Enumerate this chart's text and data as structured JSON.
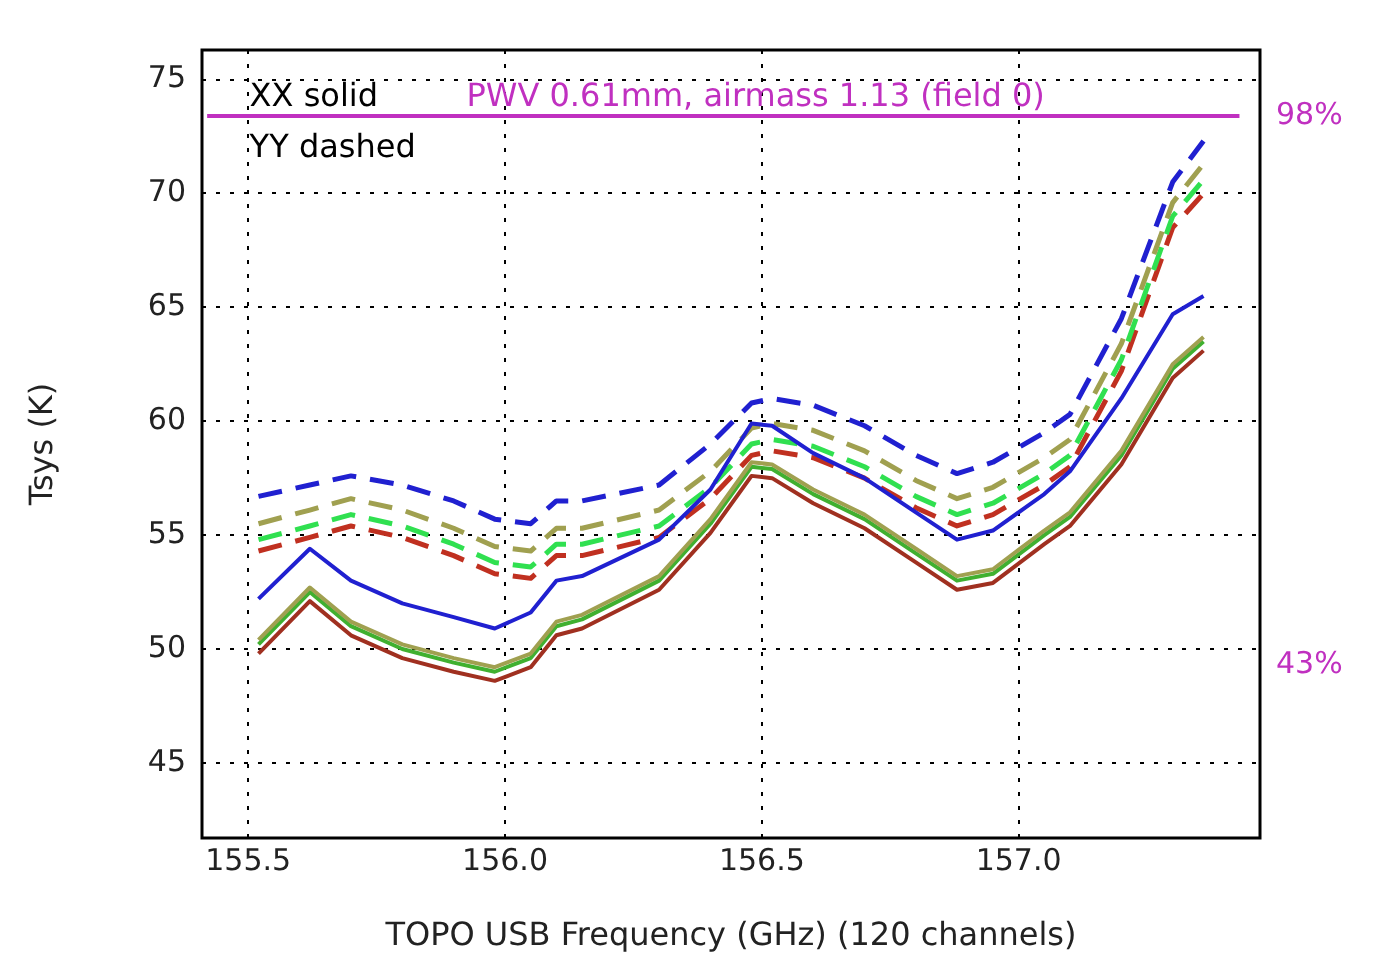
{
  "chart_data": {
    "type": "line",
    "xlabel": "TOPO USB Frequency (GHz) (120 channels)",
    "ylabel": "Tsys (K)",
    "xlim": [
      155.41,
      157.47
    ],
    "xticks": [
      {
        "value": 155.5,
        "label": "155.5"
      },
      {
        "value": 156.0,
        "label": "156.0"
      },
      {
        "value": 156.5,
        "label": "156.5"
      },
      {
        "value": 157.0,
        "label": "157.0"
      }
    ],
    "ylim": [
      41.7,
      76.3
    ],
    "yticks": [
      45,
      50,
      55,
      60,
      65,
      70,
      75
    ],
    "y2lim": [
      25.7,
      104.6
    ],
    "y2ticks": [
      {
        "value": 43,
        "label": "43%"
      },
      {
        "value": 98,
        "label": "98%"
      }
    ],
    "grid": true,
    "legend": false,
    "x": [
      155.52,
      155.62,
      155.7,
      155.8,
      155.9,
      155.98,
      156.05,
      156.1,
      156.15,
      156.3,
      156.4,
      156.48,
      156.52,
      156.6,
      156.7,
      156.8,
      156.88,
      156.95,
      157.05,
      157.1,
      157.2,
      157.3,
      157.36
    ],
    "series": [
      {
        "color": "#2020d0",
        "line_style": "solid",
        "values": [
          52.2,
          54.4,
          53.0,
          52.0,
          51.4,
          50.9,
          51.6,
          53.0,
          53.2,
          54.8,
          57.0,
          59.9,
          59.8,
          58.6,
          57.5,
          56.0,
          54.8,
          55.2,
          56.8,
          57.8,
          61.0,
          64.7,
          65.5
        ]
      },
      {
        "color": "#a03020",
        "line_style": "solid",
        "values": [
          49.8,
          52.1,
          50.6,
          49.6,
          49.0,
          48.6,
          49.2,
          50.6,
          50.9,
          52.6,
          55.1,
          57.6,
          57.5,
          56.4,
          55.3,
          53.8,
          52.6,
          52.9,
          54.6,
          55.4,
          58.1,
          61.9,
          63.1
        ]
      },
      {
        "color": "#a0a050",
        "line_style": "solid",
        "values": [
          50.4,
          52.7,
          51.2,
          50.2,
          49.6,
          49.2,
          49.8,
          51.2,
          51.5,
          53.2,
          55.7,
          58.2,
          58.1,
          57.0,
          55.9,
          54.4,
          53.2,
          53.5,
          55.2,
          56.0,
          58.7,
          62.5,
          63.7
        ]
      },
      {
        "color": "#40b030",
        "line_style": "solid",
        "values": [
          50.2,
          52.5,
          51.0,
          50.0,
          49.4,
          49.0,
          49.6,
          51.0,
          51.3,
          53.0,
          55.5,
          58.0,
          57.9,
          56.8,
          55.7,
          54.2,
          53.0,
          53.3,
          55.0,
          55.8,
          58.5,
          62.3,
          63.5
        ]
      },
      {
        "color": "#2020d0",
        "line_style": "dashed",
        "values": [
          56.7,
          57.2,
          57.6,
          57.2,
          56.5,
          55.7,
          55.5,
          56.5,
          56.5,
          57.2,
          59.0,
          60.8,
          61.0,
          60.7,
          59.8,
          58.5,
          57.7,
          58.2,
          59.5,
          60.3,
          64.5,
          70.5,
          72.3
        ]
      },
      {
        "color": "#a0a050",
        "line_style": "dashed",
        "values": [
          55.5,
          56.1,
          56.6,
          56.1,
          55.3,
          54.5,
          54.3,
          55.3,
          55.3,
          56.1,
          57.8,
          59.7,
          59.9,
          59.6,
          58.7,
          57.4,
          56.6,
          57.1,
          58.4,
          59.2,
          63.4,
          69.6,
          71.3
        ]
      },
      {
        "color": "#30e050",
        "line_style": "dashed",
        "values": [
          54.8,
          55.4,
          55.9,
          55.4,
          54.6,
          53.8,
          53.6,
          54.6,
          54.6,
          55.4,
          57.1,
          59.0,
          59.2,
          58.9,
          58.0,
          56.7,
          55.9,
          56.4,
          57.7,
          58.5,
          62.7,
          69.0,
          70.6
        ]
      },
      {
        "color": "#c03020",
        "line_style": "dashed",
        "values": [
          54.3,
          54.9,
          55.4,
          54.9,
          54.1,
          53.3,
          53.1,
          54.1,
          54.1,
          54.9,
          56.6,
          58.5,
          58.7,
          58.4,
          57.5,
          56.2,
          55.4,
          55.9,
          57.2,
          58.0,
          62.2,
          68.5,
          70.0
        ]
      },
      {
        "color": "#c030c0",
        "line_style": "solid",
        "axis": "y2",
        "x": [
          155.42,
          157.43
        ],
        "values": [
          98,
          98
        ]
      }
    ],
    "annotations": [
      "XX solid",
      "YY dashed",
      "PWV 0.61mm, airmass 1.13 (field 0)"
    ]
  }
}
